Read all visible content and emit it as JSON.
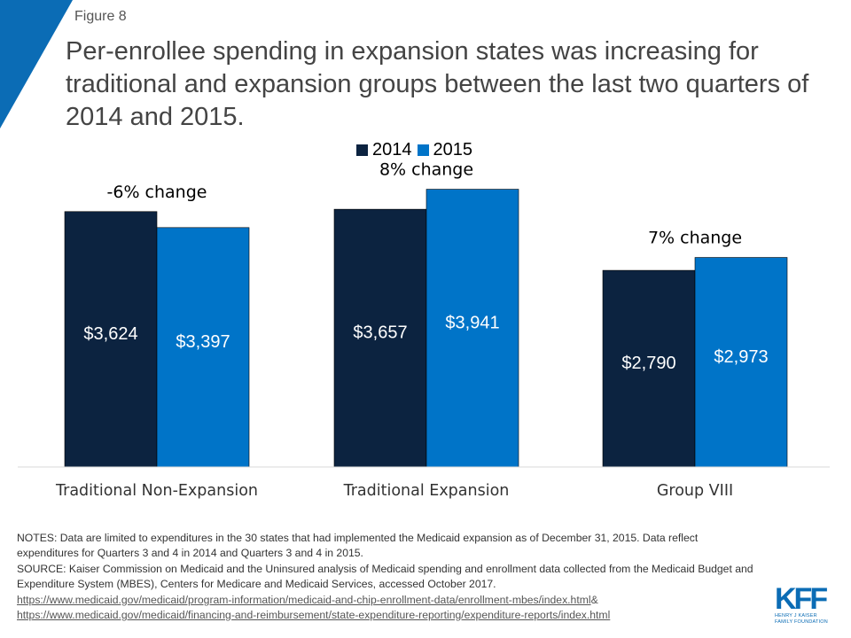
{
  "figure_label": "Figure 8",
  "colors": {
    "series_2014": "#0c2340",
    "series_2015": "#0074c8",
    "accent": "#0b6cb5",
    "axis": "#d9d9d9"
  },
  "chart_data": {
    "type": "bar",
    "title": "Per-enrollee spending in expansion states was increasing for traditional and expansion groups between the last two quarters of 2014 and 2015.",
    "categories": [
      "Traditional Non-Expansion",
      "Traditional Expansion",
      "Group VIII"
    ],
    "series": [
      {
        "name": "2014",
        "values": [
          3624,
          3657,
          2790
        ],
        "labels": [
          "$3,624",
          "$3,657",
          "$2,790"
        ]
      },
      {
        "name": "2015",
        "values": [
          3397,
          3941,
          2973
        ],
        "labels": [
          "$3,397",
          "$3,941",
          "$2,973"
        ]
      }
    ],
    "annotations": [
      "-6% change",
      "8% change",
      "7% change"
    ],
    "legend_position": "top-center",
    "grid": false,
    "ylim": [
      0,
      4300
    ]
  },
  "notes": {
    "notes_text": "NOTES: Data are limited to expenditures in the 30 states that had implemented the Medicaid expansion as of December 31, 2015. Data reflect expenditures for Quarters 3 and 4 in 2014 and Quarters 3 and 4 in 2015.",
    "source_text": "SOURCE: Kaiser Commission on Medicaid and the Uninsured analysis of Medicaid spending and enrollment data collected from the Medicaid Budget and Expenditure System (MBES), Centers for Medicare and Medicaid Services, accessed October 2017.",
    "link1": "https://www.medicaid.gov/medicaid/program-information/medicaid-and-chip-enrollment-data/enrollment-mbes/index.html",
    "link_joiner": " &",
    "link2": "https://www.medicaid.gov/medicaid/financing-and-reimbursement/state-expenditure-reporting/expenditure-reports/index.html"
  },
  "logo": {
    "mark": "KFF",
    "line1": "HENRY J KAISER",
    "line2": "FAMILY FOUNDATION"
  }
}
